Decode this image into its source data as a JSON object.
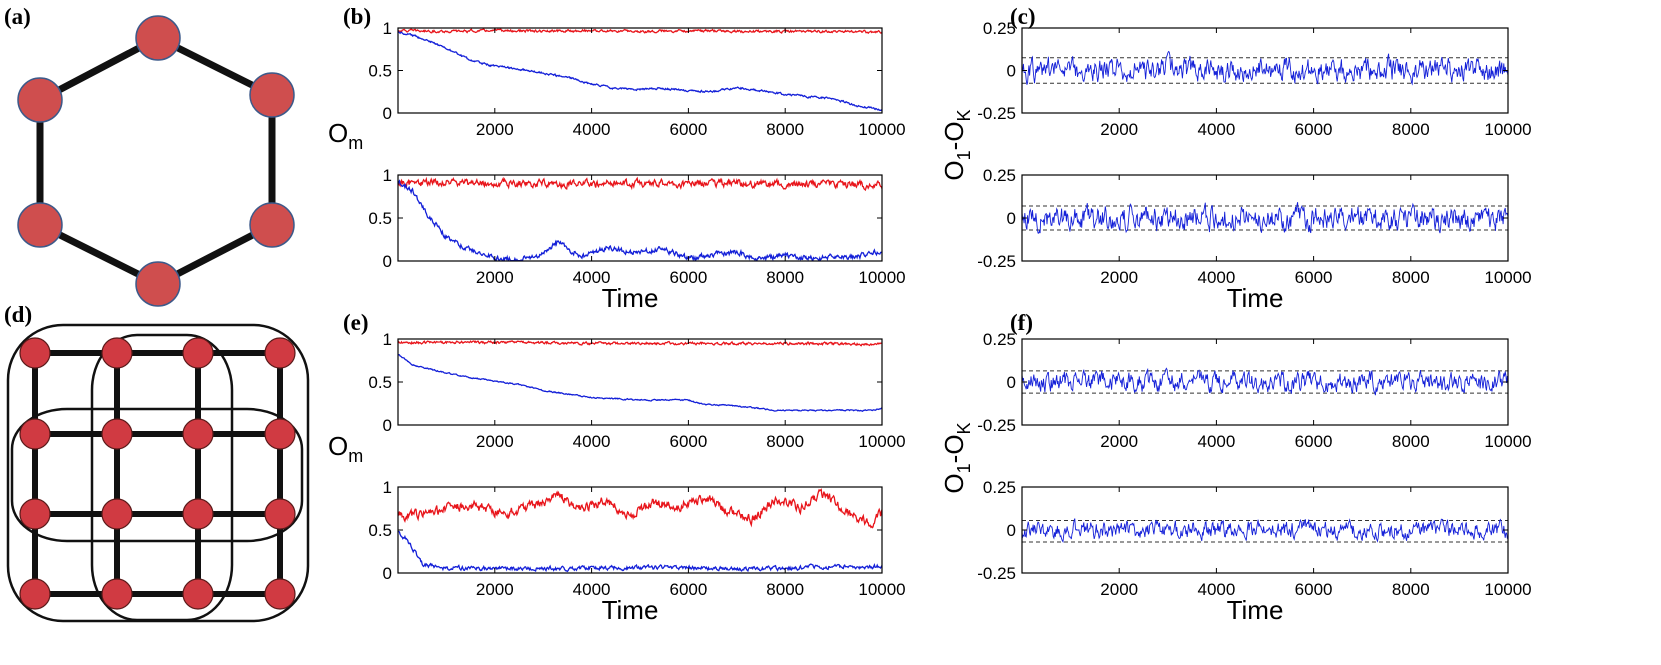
{
  "figure": {
    "panel_labels": {
      "a": "(a)",
      "b": "(b)",
      "c": "(c)",
      "d": "(d)",
      "e": "(e)",
      "f": "(f)"
    },
    "diagram_a": {
      "description_name": "ring-network",
      "node_count": 6
    },
    "diagram_d": {
      "description_name": "periodic-lattice-network",
      "rows": 4,
      "cols": 4
    },
    "colors": {
      "red": "#e8151b",
      "blue": "#1420d8",
      "node": "#cf4e4e",
      "edge": "#111111"
    }
  },
  "chart_data": [
    {
      "id": "b-top",
      "type": "line",
      "xlabel": "",
      "ylabel": "O_m",
      "xlim": [
        0,
        10000
      ],
      "ylim": [
        0,
        1
      ],
      "xticks": [
        "2000",
        "4000",
        "6000",
        "8000",
        "10000"
      ],
      "yticks": [
        "0",
        "0.5",
        "1"
      ],
      "series": [
        {
          "name": "red",
          "color": "#e8151b",
          "x": [
            0,
            1000,
            2000,
            3000,
            4000,
            5000,
            6000,
            7000,
            8000,
            9000,
            10000
          ],
          "y": [
            0.97,
            0.96,
            0.97,
            0.96,
            0.97,
            0.96,
            0.97,
            0.96,
            0.96,
            0.96,
            0.95
          ],
          "noise": 0.012
        },
        {
          "name": "blue",
          "color": "#1420d8",
          "x": [
            0,
            500,
            1000,
            1500,
            2000,
            2500,
            3000,
            3500,
            4000,
            4500,
            5000,
            5500,
            6000,
            6500,
            7000,
            7500,
            8000,
            8500,
            9000,
            9500,
            10000
          ],
          "y": [
            0.96,
            0.88,
            0.76,
            0.62,
            0.55,
            0.52,
            0.47,
            0.42,
            0.34,
            0.29,
            0.28,
            0.29,
            0.26,
            0.25,
            0.3,
            0.26,
            0.22,
            0.19,
            0.17,
            0.08,
            0.04
          ],
          "noise": 0.01
        }
      ]
    },
    {
      "id": "b-bottom",
      "type": "line",
      "xlabel": "Time",
      "ylabel": "",
      "xlim": [
        0,
        10000
      ],
      "ylim": [
        0,
        1
      ],
      "xticks": [
        "2000",
        "4000",
        "6000",
        "8000",
        "10000"
      ],
      "yticks": [
        "0",
        "0.5",
        "1"
      ],
      "series": [
        {
          "name": "red",
          "color": "#e8151b",
          "x": [
            0,
            2000,
            4000,
            6000,
            8000,
            10000
          ],
          "y": [
            0.91,
            0.91,
            0.9,
            0.9,
            0.9,
            0.88
          ],
          "noise": 0.035
        },
        {
          "name": "blue",
          "color": "#1420d8",
          "x": [
            0,
            300,
            600,
            1000,
            1500,
            2000,
            2500,
            3000,
            3300,
            3800,
            4300,
            4800,
            5500,
            6000,
            6500,
            7000,
            7500,
            8000,
            8500,
            9000,
            9500,
            10000
          ],
          "y": [
            0.92,
            0.82,
            0.55,
            0.28,
            0.12,
            0.04,
            0.02,
            0.08,
            0.22,
            0.05,
            0.16,
            0.1,
            0.14,
            0.03,
            0.08,
            0.1,
            0.02,
            0.07,
            0.03,
            0.05,
            0.05,
            0.12
          ],
          "noise": 0.025
        }
      ]
    },
    {
      "id": "c-top",
      "type": "line",
      "xlabel": "",
      "ylabel": "O_1-O_K",
      "xlim": [
        0,
        10000
      ],
      "ylim": [
        -0.25,
        0.25
      ],
      "xticks": [
        "2000",
        "4000",
        "6000",
        "8000",
        "10000"
      ],
      "yticks": [
        "-0.25",
        "0",
        "0.25"
      ],
      "dashed_lines": [
        0.075,
        -0.075
      ],
      "series": [
        {
          "name": "difference",
          "color": "#1420d8",
          "x": [
            0,
            10000
          ],
          "y": [
            0,
            0
          ],
          "noise": 0.055
        }
      ]
    },
    {
      "id": "c-bottom",
      "type": "line",
      "xlabel": "Time",
      "ylabel": "",
      "xlim": [
        0,
        10000
      ],
      "ylim": [
        -0.25,
        0.25
      ],
      "xticks": [
        "2000",
        "4000",
        "6000",
        "8000",
        "10000"
      ],
      "yticks": [
        "-0.25",
        "0",
        "0.25"
      ],
      "dashed_lines": [
        0.07,
        -0.07
      ],
      "series": [
        {
          "name": "difference",
          "color": "#1420d8",
          "x": [
            0,
            10000
          ],
          "y": [
            0,
            0
          ],
          "noise": 0.055
        }
      ]
    },
    {
      "id": "e-top",
      "type": "line",
      "xlabel": "",
      "ylabel": "O_m",
      "xlim": [
        0,
        10000
      ],
      "ylim": [
        0,
        1
      ],
      "xticks": [
        "2000",
        "4000",
        "6000",
        "8000",
        "10000"
      ],
      "yticks": [
        "0",
        "0.5",
        "1"
      ],
      "series": [
        {
          "name": "red",
          "color": "#e8151b",
          "x": [
            0,
            2000,
            4000,
            6000,
            8000,
            10000
          ],
          "y": [
            0.96,
            0.96,
            0.95,
            0.95,
            0.95,
            0.94
          ],
          "noise": 0.013
        },
        {
          "name": "blue",
          "color": "#1420d8",
          "x": [
            0,
            300,
            800,
            1500,
            2500,
            3000,
            3500,
            4000,
            5000,
            6000,
            6300,
            7000,
            7800,
            9000,
            9800,
            10000
          ],
          "y": [
            0.82,
            0.7,
            0.63,
            0.55,
            0.47,
            0.4,
            0.36,
            0.32,
            0.29,
            0.29,
            0.24,
            0.22,
            0.17,
            0.17,
            0.17,
            0.2
          ],
          "noise": 0.006
        }
      ]
    },
    {
      "id": "e-bottom",
      "type": "line",
      "xlabel": "Time",
      "ylabel": "",
      "xlim": [
        0,
        10000
      ],
      "ylim": [
        0,
        1
      ],
      "xticks": [
        "2000",
        "4000",
        "6000",
        "8000",
        "10000"
      ],
      "yticks": [
        "0",
        "0.5",
        "1"
      ],
      "series": [
        {
          "name": "red",
          "color": "#e8151b",
          "x": [
            0,
            800,
            1500,
            2200,
            2800,
            3300,
            3800,
            4300,
            4800,
            5300,
            5800,
            6300,
            6800,
            7300,
            7800,
            8300,
            8800,
            9300,
            9800,
            10000
          ],
          "y": [
            0.66,
            0.72,
            0.8,
            0.68,
            0.78,
            0.9,
            0.74,
            0.85,
            0.66,
            0.82,
            0.78,
            0.88,
            0.72,
            0.62,
            0.86,
            0.76,
            0.92,
            0.7,
            0.58,
            0.7
          ],
          "noise": 0.045
        },
        {
          "name": "blue",
          "color": "#1420d8",
          "x": [
            0,
            200,
            500,
            1000,
            2000,
            3000,
            4000,
            5000,
            6000,
            7000,
            8000,
            9000,
            10000
          ],
          "y": [
            0.48,
            0.38,
            0.1,
            0.06,
            0.05,
            0.05,
            0.06,
            0.06,
            0.06,
            0.05,
            0.05,
            0.08,
            0.07
          ],
          "noise": 0.02
        }
      ]
    },
    {
      "id": "f-top",
      "type": "line",
      "xlabel": "",
      "ylabel": "O_1-O_K",
      "xlim": [
        0,
        10000
      ],
      "ylim": [
        -0.25,
        0.25
      ],
      "xticks": [
        "2000",
        "4000",
        "6000",
        "8000",
        "10000"
      ],
      "yticks": [
        "-0.25",
        "0",
        "0.25"
      ],
      "dashed_lines": [
        0.065,
        -0.065
      ],
      "series": [
        {
          "name": "difference",
          "color": "#1420d8",
          "x": [
            0,
            10000
          ],
          "y": [
            0,
            0
          ],
          "noise": 0.045
        }
      ]
    },
    {
      "id": "f-bottom",
      "type": "line",
      "xlabel": "Time",
      "ylabel": "",
      "xlim": [
        0,
        10000
      ],
      "ylim": [
        -0.25,
        0.25
      ],
      "xticks": [
        "2000",
        "4000",
        "6000",
        "8000",
        "10000"
      ],
      "yticks": [
        "-0.25",
        "0",
        "0.25"
      ],
      "dashed_lines": [
        0.055,
        -0.07
      ],
      "series": [
        {
          "name": "difference",
          "color": "#1420d8",
          "x": [
            0,
            10000
          ],
          "y": [
            0,
            0
          ],
          "noise": 0.04
        }
      ]
    }
  ]
}
